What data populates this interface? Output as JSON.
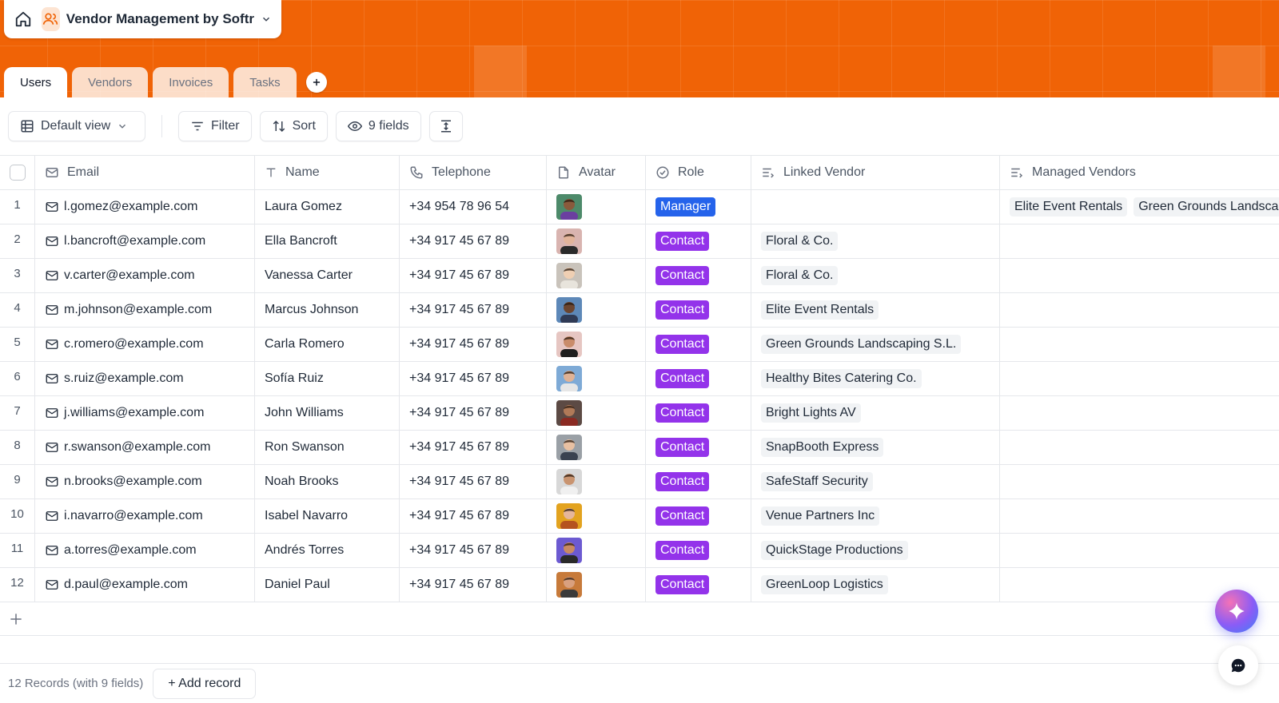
{
  "app": {
    "title": "Vendor Management by Softr",
    "icons": {
      "home": "home-icon",
      "app": "users-icon",
      "chevron": "chevron-down-icon"
    }
  },
  "colors": {
    "header_orange": "#f06306",
    "manager_badge": "#2563eb",
    "contact_badge": "#9333ea"
  },
  "tabs": [
    {
      "label": "Users",
      "active": true
    },
    {
      "label": "Vendors",
      "active": false
    },
    {
      "label": "Invoices",
      "active": false
    },
    {
      "label": "Tasks",
      "active": false
    }
  ],
  "toolbar": {
    "view_label": "Default view",
    "filter_label": "Filter",
    "sort_label": "Sort",
    "fields_label": "9 fields"
  },
  "columns": {
    "email": "Email",
    "name": "Name",
    "telephone": "Telephone",
    "avatar": "Avatar",
    "role": "Role",
    "linked_vendor": "Linked Vendor",
    "managed_vendors": "Managed Vendors"
  },
  "rows": [
    {
      "num": "1",
      "email": "l.gomez@example.com",
      "name": "Laura Gomez",
      "telephone": "+34 954 78 96 54",
      "role": "Manager",
      "linked_vendor": "",
      "managed_vendors": [
        "Elite Event Rentals",
        "Green Grounds Landscaping S.L."
      ]
    },
    {
      "num": "2",
      "email": "l.bancroft@example.com",
      "name": "Ella Bancroft",
      "telephone": "+34 917 45 67 89",
      "role": "Contact",
      "linked_vendor": "Floral & Co.",
      "managed_vendors": []
    },
    {
      "num": "3",
      "email": "v.carter@example.com",
      "name": "Vanessa Carter",
      "telephone": "+34 917 45 67 89",
      "role": "Contact",
      "linked_vendor": "Floral & Co.",
      "managed_vendors": []
    },
    {
      "num": "4",
      "email": "m.johnson@example.com",
      "name": "Marcus Johnson",
      "telephone": "+34 917 45 67 89",
      "role": "Contact",
      "linked_vendor": "Elite Event Rentals",
      "managed_vendors": []
    },
    {
      "num": "5",
      "email": "c.romero@example.com",
      "name": "Carla Romero",
      "telephone": "+34 917 45 67 89",
      "role": "Contact",
      "linked_vendor": "Green Grounds Landscaping S.L.",
      "managed_vendors": []
    },
    {
      "num": "6",
      "email": "s.ruiz@example.com",
      "name": "Sofía Ruiz",
      "telephone": "+34 917 45 67 89",
      "role": "Contact",
      "linked_vendor": "Healthy Bites Catering Co.",
      "managed_vendors": []
    },
    {
      "num": "7",
      "email": "j.williams@example.com",
      "name": "John Williams",
      "telephone": "+34 917 45 67 89",
      "role": "Contact",
      "linked_vendor": "Bright Lights AV",
      "managed_vendors": []
    },
    {
      "num": "8",
      "email": "r.swanson@example.com",
      "name": "Ron Swanson",
      "telephone": "+34 917 45 67 89",
      "role": "Contact",
      "linked_vendor": "SnapBooth Express",
      "managed_vendors": []
    },
    {
      "num": "9",
      "email": "n.brooks@example.com",
      "name": "Noah Brooks",
      "telephone": "+34 917 45 67 89",
      "role": "Contact",
      "linked_vendor": "SafeStaff Security",
      "managed_vendors": []
    },
    {
      "num": "10",
      "email": "i.navarro@example.com",
      "name": "Isabel Navarro",
      "telephone": "+34 917 45 67 89",
      "role": "Contact",
      "linked_vendor": "Venue Partners Inc",
      "managed_vendors": []
    },
    {
      "num": "11",
      "email": "a.torres@example.com",
      "name": "Andrés Torres",
      "telephone": "+34 917 45 67 89",
      "role": "Contact",
      "linked_vendor": "QuickStage Productions",
      "managed_vendors": []
    },
    {
      "num": "12",
      "email": "d.paul@example.com",
      "name": "Daniel Paul",
      "telephone": "+34 917 45 67 89",
      "role": "Contact",
      "linked_vendor": "GreenLoop Logistics",
      "managed_vendors": []
    }
  ],
  "avatar_colors": [
    {
      "bg": "#4d8a6a",
      "skin": "#8a5a3c",
      "shirt": "#6b3fa0"
    },
    {
      "bg": "#d9b4b0",
      "skin": "#e2b49a",
      "shirt": "#2a2a2a"
    },
    {
      "bg": "#c9c3bb",
      "skin": "#efcfb3",
      "shirt": "#e8e4dc"
    },
    {
      "bg": "#5d88b8",
      "skin": "#6b4530",
      "shirt": "#2f3a55"
    },
    {
      "bg": "#e6c6c2",
      "skin": "#c98c6a",
      "shirt": "#1f1f1f"
    },
    {
      "bg": "#7eaad6",
      "skin": "#e0b295",
      "shirt": "#e6e6e6"
    },
    {
      "bg": "#5c4a44",
      "skin": "#b07a58",
      "shirt": "#8a2a22"
    },
    {
      "bg": "#9aa0a6",
      "skin": "#e8c0a2",
      "shirt": "#3a4250"
    },
    {
      "bg": "#d8d8d8",
      "skin": "#c99470",
      "shirt": "#f0f0f0"
    },
    {
      "bg": "#e3a31f",
      "skin": "#e6b69a",
      "shirt": "#b5531f"
    },
    {
      "bg": "#6c5ad1",
      "skin": "#c98a62",
      "shirt": "#2a2a2a"
    },
    {
      "bg": "#c77a3a",
      "skin": "#d9a07e",
      "shirt": "#3a3a3a"
    }
  ],
  "footer": {
    "count": "12 Records (with 9 fields)",
    "add_record": "+ Add record"
  }
}
